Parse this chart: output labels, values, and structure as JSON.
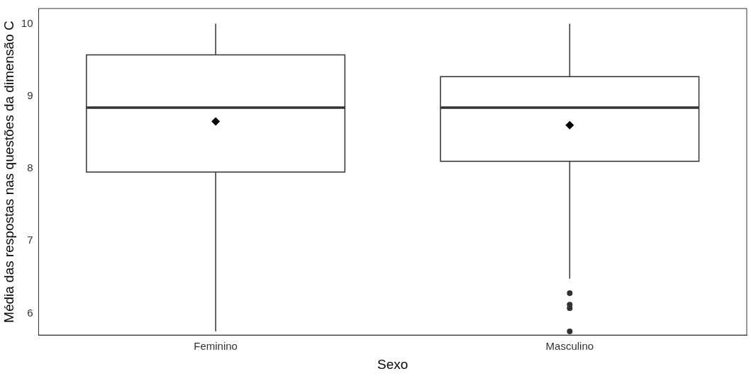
{
  "chart_data": {
    "type": "box",
    "xlabel": "Sexo",
    "ylabel": "Média das respostas nas questões da dimensão C",
    "categories": [
      "Feminino",
      "Masculino"
    ],
    "boxes": [
      {
        "low": 5.75,
        "q1": 7.95,
        "median": 8.84,
        "q3": 9.57,
        "high": 10,
        "mean": 8.65
      },
      {
        "low": 6.48,
        "q1": 8.1,
        "median": 8.84,
        "q3": 9.27,
        "high": 10,
        "mean": 8.6,
        "outliers": [
          6.28,
          6.12,
          6.07,
          5.75
        ]
      }
    ],
    "ylim": [
      5.7,
      10.21
    ],
    "yticks": [
      6,
      7,
      8,
      9,
      10
    ],
    "grid": false,
    "legend": false,
    "marker": "diamond"
  }
}
